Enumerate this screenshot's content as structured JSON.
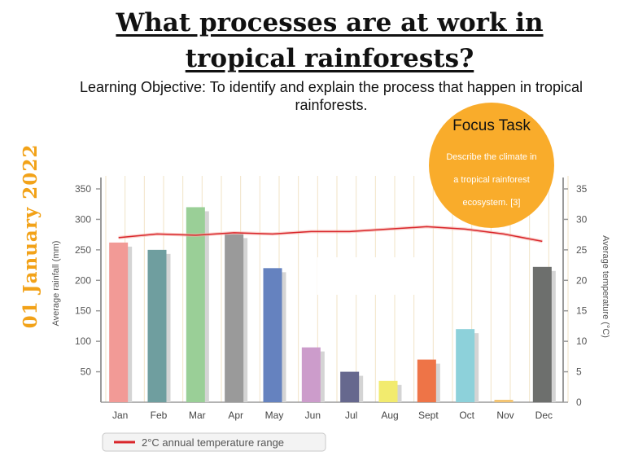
{
  "slide": {
    "title_line1": "What processes are at work in",
    "title_line2": "tropical rainforests?",
    "objective": "Learning Objective: To identify and explain the process that happen in tropical rainforests.",
    "date": "01 January 2022",
    "focus_title": "Focus Task",
    "focus_body": "Describe the climate in a tropical rainforest ecosystem. [3]"
  },
  "colors": {
    "title": "#111111",
    "date": "#f2a218",
    "focus_circle": "#f9ac2b",
    "temperature_line": "#d9262b"
  },
  "chart_data": {
    "type": "bar",
    "categories": [
      "Jan",
      "Feb",
      "Mar",
      "Apr",
      "May",
      "Jun",
      "Jul",
      "Aug",
      "Sept",
      "Oct",
      "Nov",
      "Dec"
    ],
    "series": [
      {
        "values": [
          262,
          250,
          320,
          276,
          220,
          90,
          50,
          35,
          70,
          120,
          4,
          222
        ],
        "colors": [
          "#f29a96",
          "#6f9e9f",
          "#9acf97",
          "#9a9a9a",
          "#6582bf",
          "#cc9ccb",
          "#66688e",
          "#f2eb6e",
          "#ee7447",
          "#8dd1da",
          "#f3c472",
          "#6d6f6d"
        ]
      },
      {
        "values": [
          27,
          27.6,
          27.4,
          27.8,
          27.6,
          28,
          28,
          28.4,
          28.8,
          28.4,
          27.6,
          26.4
        ],
        "axis": "right"
      }
    ],
    "ylabel": "Average rainfall (mm)",
    "y2label": "Average temperature (°C)",
    "ylim": [
      0,
      350
    ],
    "y2lim": [
      0,
      35
    ],
    "yticks": [
      50,
      100,
      150,
      200,
      250,
      300,
      350
    ],
    "y2ticks": [
      0,
      5,
      10,
      15,
      20,
      25,
      30,
      35
    ],
    "legend": {
      "label": "2°C annual temperature range",
      "position": "bottom-left"
    },
    "grid": "vertical"
  }
}
